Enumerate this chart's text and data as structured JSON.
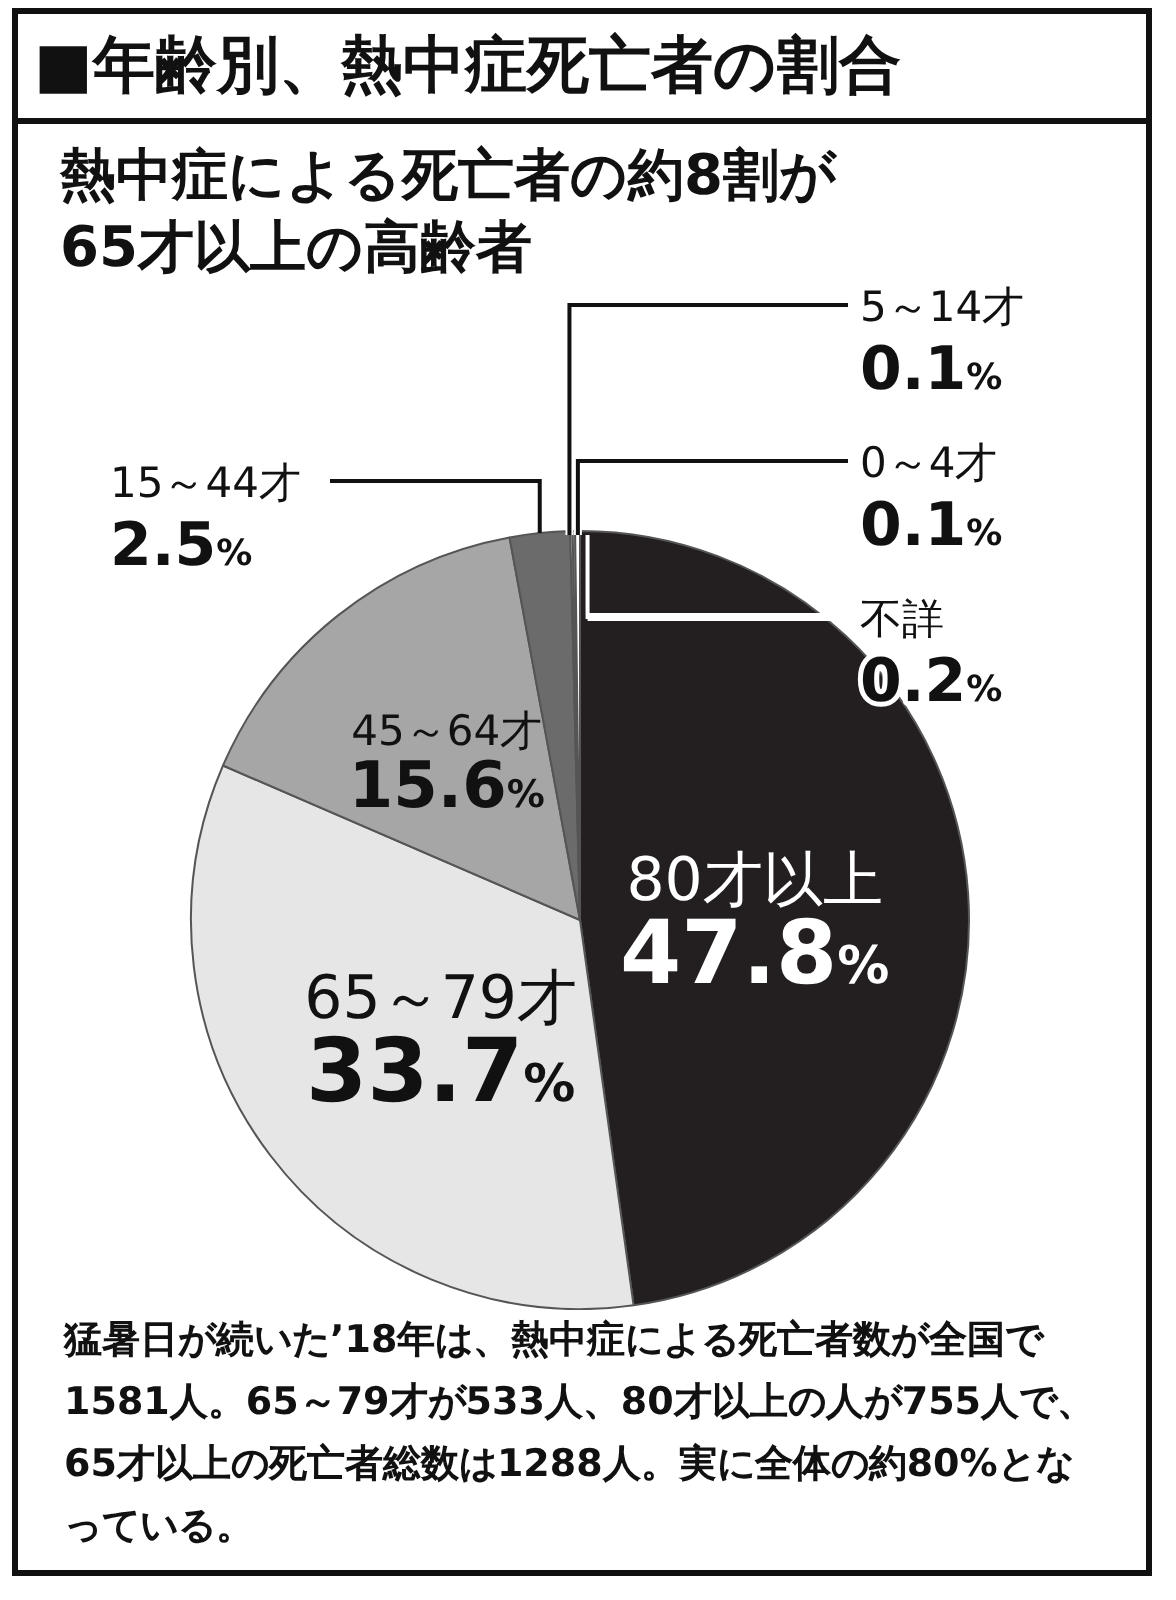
{
  "chart_data": {
    "type": "pie",
    "title": "■年齢別、熱中症死亡者の割合",
    "subtitle": "熱中症による死亡者の約8割が65才以上の高齢者",
    "categories": [
      "80才以上",
      "65～79才",
      "45～64才",
      "15～44才",
      "5～14才",
      "0～4才",
      "不詳"
    ],
    "values": [
      47.8,
      33.7,
      15.6,
      2.5,
      0.1,
      0.1,
      0.2
    ],
    "colors": [
      "#231f20",
      "#e6e6e6",
      "#a6a6a6",
      "#6b6b6b",
      "#cfcfcf",
      "#eeeeee",
      "#ffffff"
    ],
    "value_labels": [
      "47.8%",
      "33.7%",
      "15.6%",
      "2.5%",
      "0.1%",
      "0.1%",
      "0.2%"
    ],
    "legend": false,
    "annotations": [
      "猛暑日が続いた’18年は、熱中症による死亡者数が全国で1581人。65～79才が533人、80才以上の人が755人で、65才以上の死亡者総数は1288人。実に全体の約80%となっている。"
    ]
  }
}
